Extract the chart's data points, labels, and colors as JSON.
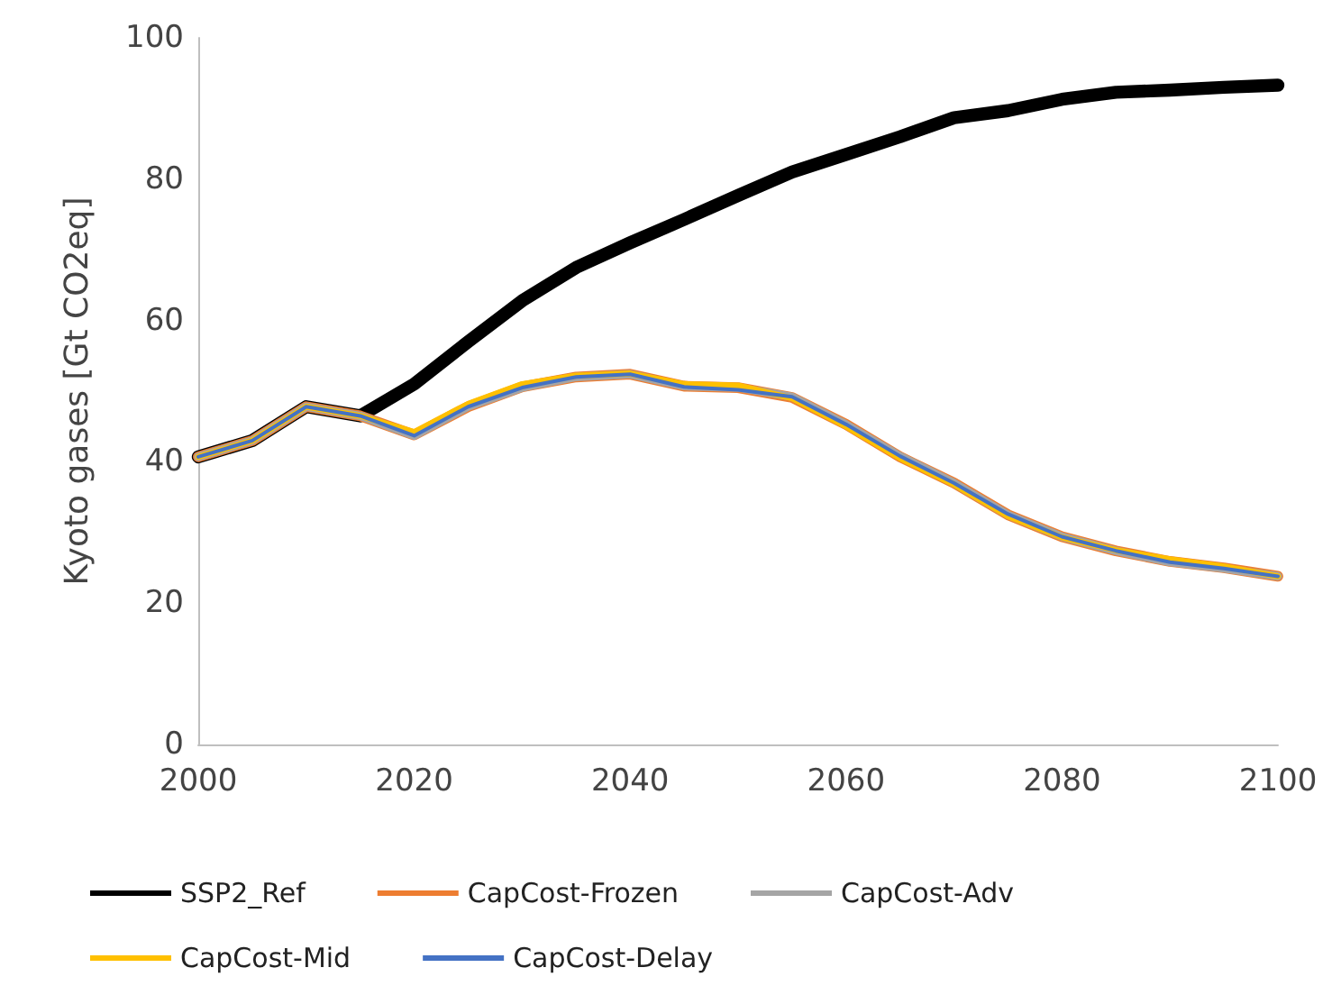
{
  "chart_data": {
    "type": "line",
    "ylabel": "Kyoto gases [Gt CO2eq]",
    "x": [
      2000,
      2005,
      2010,
      2015,
      2020,
      2025,
      2030,
      2035,
      2040,
      2045,
      2050,
      2055,
      2060,
      2065,
      2070,
      2075,
      2080,
      2085,
      2090,
      2095,
      2100
    ],
    "series": [
      {
        "name": "SSP2_Ref",
        "color": "#000000",
        "values": [
          40.7,
          43,
          47.8,
          46.5,
          51,
          57,
          62.8,
          67.5,
          71,
          74.3,
          77.7,
          81,
          83.5,
          86,
          88.7,
          89.7,
          91.3,
          92.3,
          92.6,
          93,
          93.3
        ]
      },
      {
        "name": "CapCost-Frozen",
        "color": "#ed7d31",
        "values": [
          40.7,
          43,
          47.8,
          46.5,
          43.8,
          47.8,
          50.6,
          52,
          52.4,
          50.7,
          50.5,
          49.1,
          45.3,
          40.7,
          37,
          32.5,
          29.4,
          27.4,
          25.9,
          25,
          23.8
        ]
      },
      {
        "name": "CapCost-Adv",
        "color": "#a5a5a5",
        "values": [
          40.7,
          43,
          47.8,
          46.5,
          43.7,
          47.8,
          50.5,
          52,
          52.4,
          50.7,
          50.5,
          49.2,
          45.3,
          40.8,
          37,
          32.5,
          29.4,
          27.4,
          25.8,
          24.9,
          23.8
        ]
      },
      {
        "name": "CapCost-Mid",
        "color": "#ffc000",
        "values": [
          40.7,
          43,
          47.8,
          46.5,
          44.2,
          48.2,
          51,
          52.2,
          52.5,
          51,
          50.8,
          49,
          45,
          40.5,
          36.8,
          32.3,
          29.3,
          27.5,
          26.2,
          25.2,
          23.8
        ]
      },
      {
        "name": "CapCost-Delay",
        "color": "#4472c4",
        "values": [
          40.7,
          43,
          47.8,
          46.5,
          43.7,
          47.8,
          50.5,
          52,
          52.4,
          50.6,
          50.2,
          49.2,
          45.3,
          40.8,
          37,
          32.6,
          29.4,
          27.4,
          25.8,
          24.9,
          23.8
        ]
      }
    ],
    "xlim": [
      2000,
      2100
    ],
    "xticks": [
      2000,
      2020,
      2040,
      2060,
      2080,
      2100
    ],
    "ylim": [
      0,
      100
    ],
    "yticks": [
      0,
      20,
      40,
      60,
      80,
      100
    ],
    "grid": false,
    "legend": "bottom",
    "marker": "none",
    "line_style": "solid"
  }
}
